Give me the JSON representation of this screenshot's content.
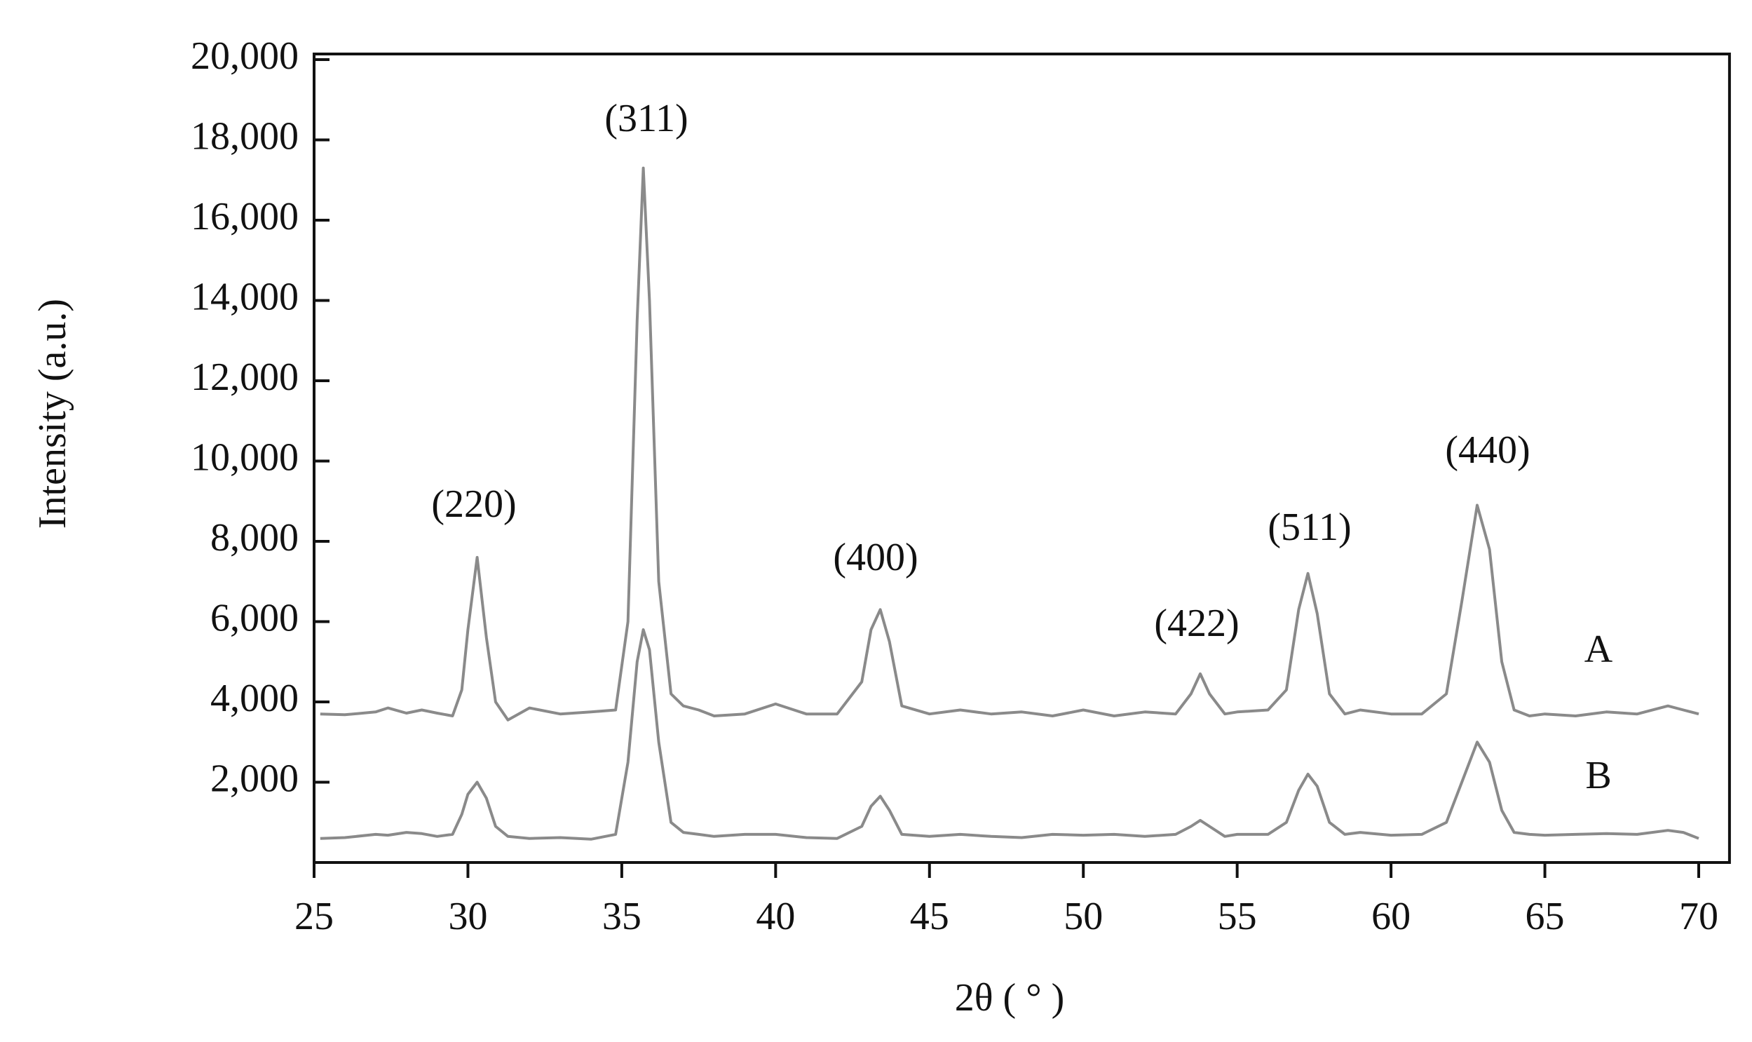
{
  "chart_data": {
    "type": "line",
    "xlabel": "2θ ( ° )",
    "ylabel": "Intensity (a.u.)",
    "xlim": [
      25,
      71
    ],
    "ylim": [
      0,
      20000
    ],
    "xticks": [
      25,
      30,
      35,
      40,
      45,
      50,
      55,
      60,
      65,
      70
    ],
    "yticks": [
      {
        "value": 2000,
        "label": "2,000"
      },
      {
        "value": 4000,
        "label": "4,000"
      },
      {
        "value": 6000,
        "label": "6,000"
      },
      {
        "value": 8000,
        "label": "8,000"
      },
      {
        "value": 10000,
        "label": "10,000"
      },
      {
        "value": 12000,
        "label": "12,000"
      },
      {
        "value": 14000,
        "label": "14,000"
      },
      {
        "value": 16000,
        "label": "16,000"
      },
      {
        "value": 18000,
        "label": "18,000"
      },
      {
        "value": 20000,
        "label": "20,000"
      }
    ],
    "annotations": [
      "(220)",
      "(311)",
      "(400)",
      "(422)",
      "(511)",
      "(440)"
    ],
    "x": [
      25.2,
      26,
      27,
      27.4,
      28,
      28.5,
      29,
      29.5,
      29.8,
      30,
      30.3,
      30.6,
      30.9,
      31.3,
      32,
      33,
      34,
      34.8,
      35.2,
      35.5,
      35.7,
      35.9,
      36.2,
      36.6,
      37,
      37.5,
      38,
      39,
      40,
      41,
      42,
      42.8,
      43.1,
      43.4,
      43.7,
      44.1,
      45,
      46,
      47,
      48,
      49,
      50,
      51,
      52,
      53,
      53.5,
      53.8,
      54.1,
      54.6,
      55,
      56,
      56.6,
      57,
      57.3,
      57.6,
      58,
      58.5,
      59,
      60,
      61,
      61.8,
      62.3,
      62.8,
      63.2,
      63.6,
      64,
      64.5,
      65,
      66,
      67,
      68,
      69,
      69.5,
      70
    ],
    "series": [
      {
        "name": "A",
        "color": "#8a8a8a",
        "values": [
          3700,
          3680,
          3750,
          3850,
          3720,
          3800,
          3720,
          3650,
          4300,
          5800,
          7600,
          5600,
          4000,
          3550,
          3850,
          3700,
          3750,
          3800,
          6000,
          13500,
          17300,
          14000,
          7000,
          4200,
          3900,
          3800,
          3650,
          3700,
          3950,
          3700,
          3700,
          4500,
          5800,
          6300,
          5500,
          3900,
          3700,
          3800,
          3700,
          3750,
          3650,
          3800,
          3650,
          3750,
          3700,
          4200,
          4700,
          4200,
          3700,
          3750,
          3800,
          4300,
          6300,
          7200,
          6200,
          4200,
          3700,
          3800,
          3700,
          3700,
          4200,
          6500,
          8900,
          7800,
          5000,
          3800,
          3650,
          3700,
          3650,
          3750,
          3700,
          3900,
          3800,
          3700
        ]
      },
      {
        "name": "B",
        "color": "#8a8a8a",
        "values": [
          600,
          620,
          700,
          680,
          750,
          720,
          650,
          700,
          1200,
          1700,
          2000,
          1600,
          900,
          650,
          600,
          620,
          580,
          700,
          2500,
          5000,
          5800,
          5300,
          3000,
          1000,
          750,
          700,
          650,
          700,
          700,
          620,
          600,
          900,
          1400,
          1650,
          1300,
          700,
          650,
          700,
          650,
          620,
          700,
          680,
          700,
          650,
          700,
          900,
          1050,
          900,
          650,
          700,
          700,
          1000,
          1800,
          2200,
          1900,
          1000,
          700,
          750,
          680,
          700,
          1000,
          2000,
          3000,
          2500,
          1300,
          750,
          700,
          680,
          700,
          720,
          700,
          800,
          750,
          600
        ]
      }
    ]
  }
}
